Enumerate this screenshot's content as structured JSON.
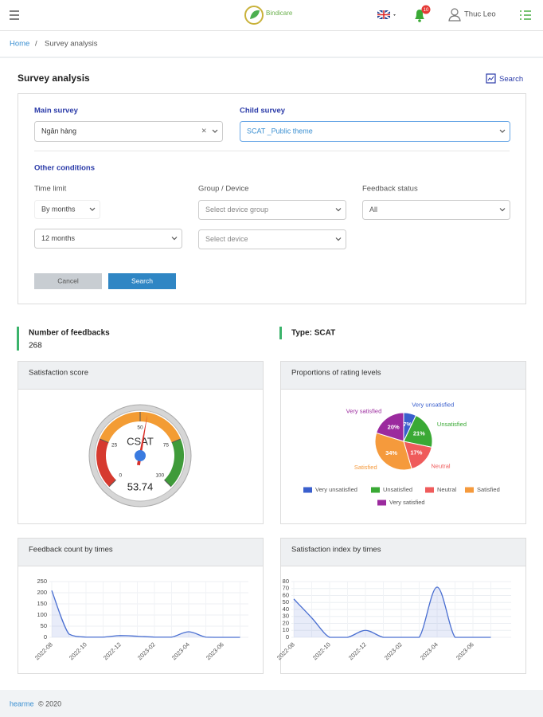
{
  "header": {
    "brand": "Bindicare",
    "notifications": "10",
    "user": "Thuc Leo"
  },
  "breadcrumb": [
    "Home",
    "Survey analysis"
  ],
  "page_title": "Survey analysis",
  "search_link": "Search",
  "form": {
    "main_survey_label": "Main survey",
    "main_survey": "Ngân hàng",
    "child_survey_label": "Child survey",
    "child_survey": "SCAT _Public theme",
    "other_conditions": "Other conditions",
    "time_limit_label": "Time limit",
    "time_unit": "By months",
    "time_range": "12 months",
    "group_label": "Group / Device",
    "device_group": "Select device group",
    "device": "Select device",
    "status_label": "Feedback status",
    "status": "All",
    "cancel": "Cancel",
    "search": "Search"
  },
  "stats": {
    "feedbacks_label": "Number of feedbacks",
    "feedbacks": 268,
    "type": "Type: SCAT"
  },
  "gauge": {
    "type": "gauge",
    "title": "Satisfaction score",
    "label": "CSAT",
    "value": 53.74,
    "lim": [
      0,
      100
    ],
    "ticks": [
      0,
      25,
      50,
      75,
      100
    ],
    "bands": [
      {
        "from": 0,
        "to": 25,
        "color": "#d63a2f"
      },
      {
        "from": 25,
        "to": 75,
        "color": "#f39c34"
      },
      {
        "from": 75,
        "to": 100,
        "color": "#3f9b3a"
      }
    ]
  },
  "pie": {
    "type": "pie",
    "title": "Proportions of rating levels",
    "categories": [
      "Very unsatisfied",
      "Unsatisfied",
      "Neutral",
      "Satisfied",
      "Very satisfied"
    ],
    "values": [
      7,
      21,
      17,
      34,
      20
    ],
    "value_labels": [
      "7%",
      "21%",
      "17%",
      "34%",
      "20%"
    ],
    "colors": [
      "#3a5fcd",
      "#3aa935",
      "#ef5b5b",
      "#f59a3c",
      "#9b2a9e"
    ]
  },
  "feedback_chart": {
    "type": "line",
    "title": "Feedback count by times",
    "categories": [
      "2022-08",
      null,
      "2022-10",
      null,
      "2022-12",
      null,
      "2023-02",
      null,
      "2023-04",
      null,
      "2023-06",
      null
    ],
    "values": [
      210,
      15,
      1,
      1,
      8,
      5,
      1,
      1,
      25,
      1,
      0,
      0
    ],
    "ylim": [
      0,
      250
    ],
    "yticks": [
      0,
      50,
      100,
      150,
      200,
      250
    ],
    "color": "#4a6fd1",
    "grid": true
  },
  "satisfaction_chart": {
    "type": "line",
    "title": "Satisfaction index by times",
    "categories": [
      "2022-08",
      null,
      "2022-10",
      null,
      "2022-12",
      null,
      "2023-02",
      null,
      "2023-04",
      null,
      "2023-06",
      null
    ],
    "values": [
      55,
      28,
      0,
      0,
      10,
      0,
      0,
      0,
      72,
      0,
      0,
      0
    ],
    "ylim": [
      0,
      80
    ],
    "yticks": [
      0,
      10,
      20,
      30,
      40,
      50,
      60,
      70,
      80
    ],
    "color": "#4a6fd1",
    "grid": true
  },
  "footer": {
    "brand": "hearme",
    "copyright": "© 2020"
  }
}
